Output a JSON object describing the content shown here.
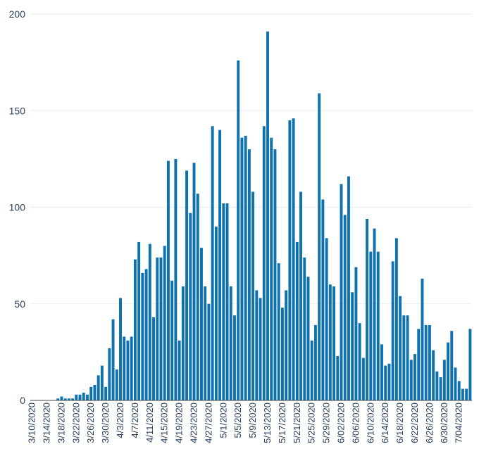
{
  "chart_data": {
    "type": "bar",
    "title": "",
    "xlabel": "",
    "ylabel": "",
    "ylim": [
      0,
      200
    ],
    "yticks": [
      0,
      50,
      100,
      150,
      200
    ],
    "grid": "horizontal",
    "bar_color": "#0e72b0",
    "start_date": "2020-03-10",
    "x_tick_labels": [
      "3/10/2020",
      "3/14/2020",
      "3/18/2020",
      "3/22/2020",
      "3/26/2020",
      "3/30/2020",
      "4/3/2020",
      "4/7/2020",
      "4/11/2020",
      "4/15/2020",
      "4/19/2020",
      "4/23/2020",
      "4/27/2020",
      "5/1/2020",
      "5/5/2020",
      "5/9/2020",
      "5/13/2020",
      "5/17/2020",
      "5/21/2020",
      "5/25/2020",
      "5/29/2020",
      "6/02/2020",
      "6/06/2020",
      "6/10/2020",
      "6/14/2020",
      "6/18/2020",
      "6/22/2020",
      "6/26/2020",
      "6/30/2020",
      "7/04/2020"
    ],
    "values": [
      0,
      0,
      0,
      0,
      0,
      0,
      0,
      1,
      2,
      1,
      1,
      1,
      3,
      3,
      4,
      3,
      7,
      8,
      13,
      18,
      7,
      27,
      42,
      16,
      53,
      33,
      31,
      33,
      73,
      82,
      66,
      68,
      81,
      43,
      74,
      74,
      80,
      124,
      62,
      125,
      31,
      59,
      119,
      97,
      123,
      107,
      79,
      59,
      50,
      142,
      90,
      140,
      102,
      102,
      59,
      44,
      176,
      136,
      137,
      130,
      108,
      57,
      53,
      142,
      191,
      136,
      130,
      71,
      48,
      57,
      145,
      146,
      82,
      108,
      74,
      64,
      31,
      39,
      159,
      104,
      84,
      60,
      59,
      23,
      112,
      96,
      116,
      56,
      69,
      40,
      22,
      94,
      77,
      89,
      77,
      29,
      18,
      19,
      72,
      84,
      54,
      44,
      44,
      21,
      24,
      37,
      63,
      39,
      39,
      26,
      15,
      12,
      21,
      30,
      36,
      17,
      10,
      6,
      6,
      37
    ]
  }
}
